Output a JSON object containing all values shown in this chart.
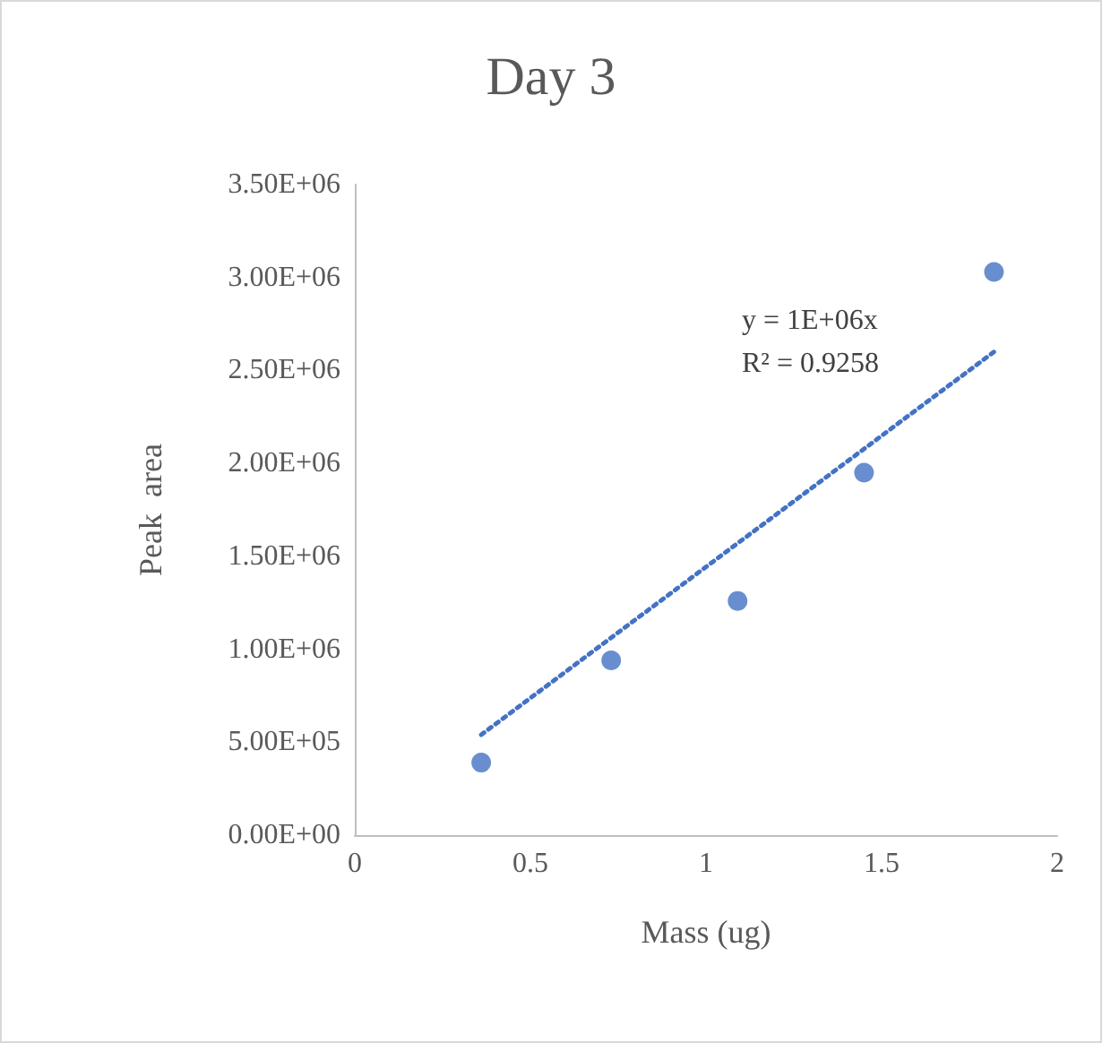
{
  "chart_data": {
    "type": "scatter",
    "title": "Day 3",
    "xlabel": "Mass (ug)",
    "ylabel": "Peak  area",
    "x": [
      0.36,
      0.73,
      1.09,
      1.45,
      1.82
    ],
    "series": [
      {
        "color": "#4472c4",
        "values": [
          390000,
          940000,
          1260000,
          1950000,
          3030000
        ],
        "marker": "circle"
      },
      {
        "type": "line",
        "color": "#4472c4",
        "x": [
          0.36,
          1.82
        ],
        "values": [
          540000,
          2600000
        ],
        "line_style": "dotted",
        "marker": "none"
      }
    ],
    "xlim": [
      0,
      2
    ],
    "xticks": [
      0,
      0.5,
      1,
      1.5,
      2
    ],
    "ylim": [
      0,
      3500000
    ],
    "yticks": [
      {
        "value": 0,
        "label": "0.00E+00"
      },
      {
        "value": 500000,
        "label": "5.00E+05"
      },
      {
        "value": 1000000,
        "label": "1.00E+06"
      },
      {
        "value": 1500000,
        "label": "1.50E+06"
      },
      {
        "value": 2000000,
        "label": "2.00E+06"
      },
      {
        "value": 2500000,
        "label": "2.50E+06"
      },
      {
        "value": 3000000,
        "label": "3.00E+06"
      },
      {
        "value": 3500000,
        "label": "3.50E+06"
      }
    ],
    "annotations": [
      "y = 1E+06x",
      "R² = 0.9258"
    ],
    "grid": false
  }
}
